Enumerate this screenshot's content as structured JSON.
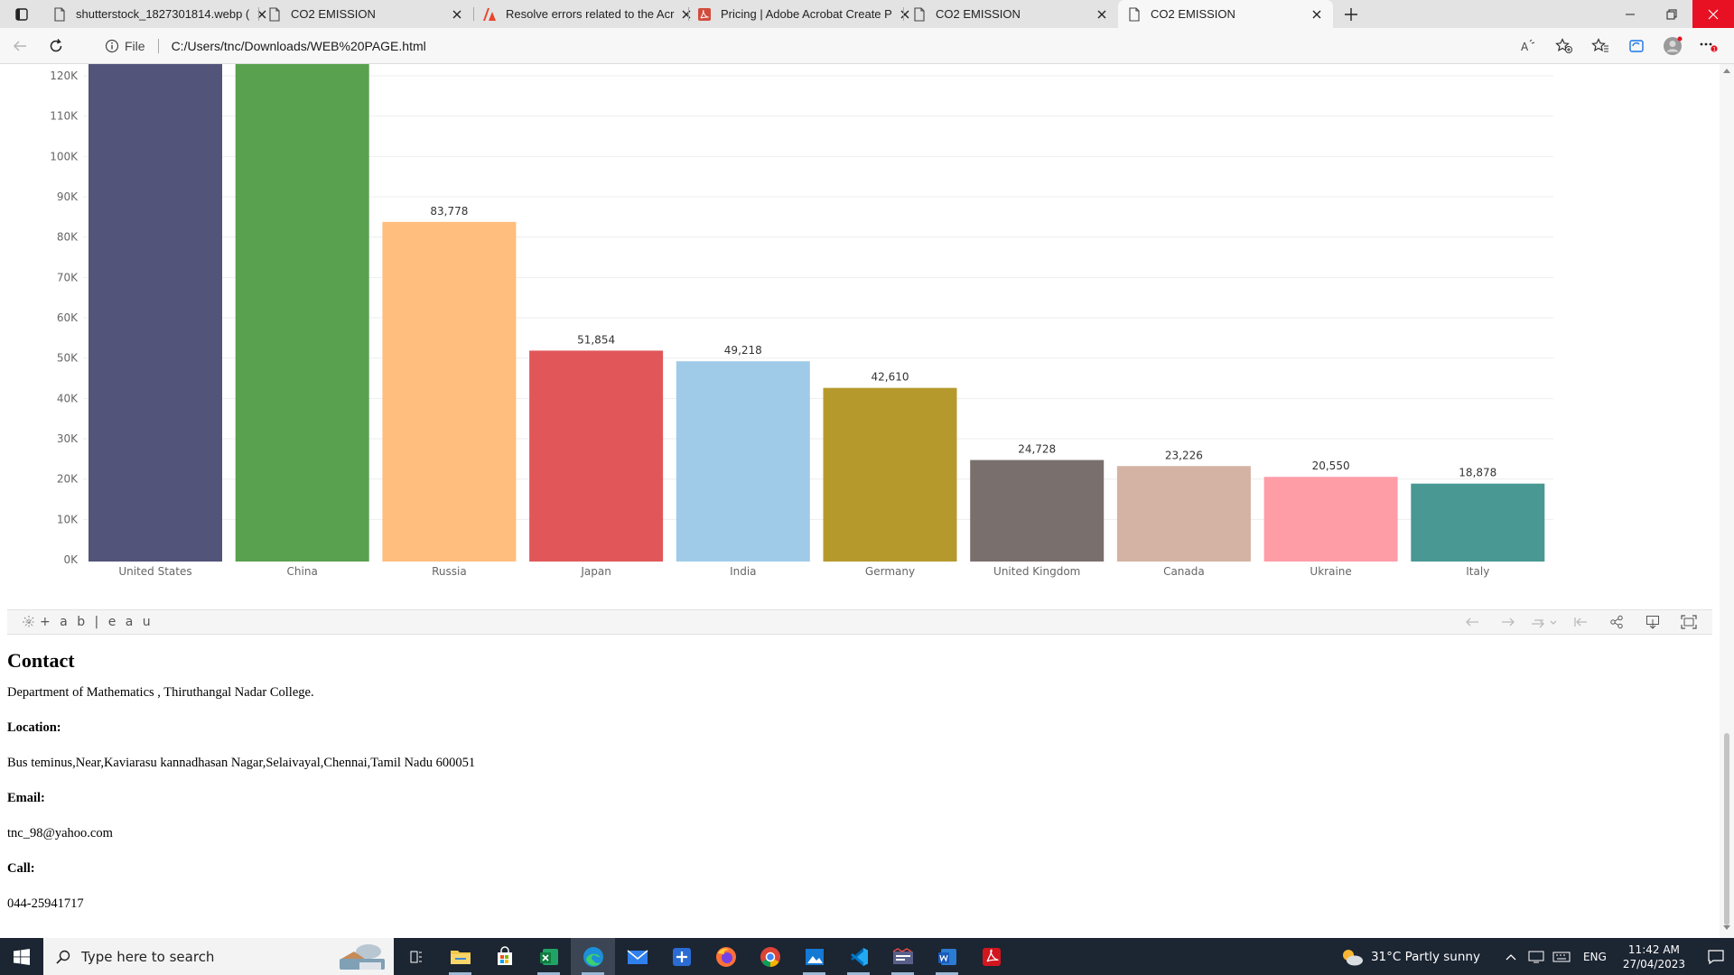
{
  "browser": {
    "tabs": [
      {
        "title": "shutterstock_1827301814.webp (",
        "icon": "page-icon",
        "active": false
      },
      {
        "title": "CO2 EMISSION",
        "icon": "page-icon",
        "active": false
      },
      {
        "title": "Resolve errors related to the Acr",
        "icon": "adobe-icon",
        "active": false
      },
      {
        "title": "Pricing | Adobe Acrobat Create P",
        "icon": "acrobat-icon",
        "active": false
      },
      {
        "title": "CO2 EMISSION",
        "icon": "page-icon",
        "active": false
      },
      {
        "title": "CO2 EMISSION",
        "icon": "page-icon",
        "active": true
      }
    ],
    "address": {
      "scheme_label": "File",
      "url": "C:/Users/tnc/Downloads/WEB%20PAGE.html"
    }
  },
  "chart_data": {
    "type": "bar",
    "categories": [
      "United States",
      "China",
      "Russia",
      "Japan",
      "India",
      "Germany",
      "United Kingdom",
      "Canada",
      "Ukraine",
      "Italy"
    ],
    "values": [
      null,
      null,
      83778,
      51854,
      49218,
      42610,
      24728,
      23226,
      20550,
      18878
    ],
    "value_labels": [
      "",
      "",
      "83,778",
      "51,854",
      "49,218",
      "42,610",
      "24,728",
      "23,226",
      "20,550",
      "18,878"
    ],
    "colors": [
      "#53547a",
      "#59a14f",
      "#ffbe7d",
      "#e15759",
      "#a0cbe8",
      "#b6992d",
      "#79706e",
      "#d4b3a4",
      "#ff9da7",
      "#499894"
    ],
    "y_ticks": [
      0,
      10000,
      20000,
      30000,
      40000,
      50000,
      60000,
      70000,
      80000,
      90000,
      100000,
      110000,
      120000
    ],
    "y_tick_labels": [
      "0K",
      "10K",
      "20K",
      "30K",
      "40K",
      "50K",
      "60K",
      "70K",
      "80K",
      "90K",
      "100K",
      "110K",
      "120K"
    ],
    "ylim": [
      0,
      120000
    ],
    "grid": true,
    "note": "United States and China bars exceed the visible 120K top and are clipped"
  },
  "tableau": {
    "logo_text": "+ a b | e a u"
  },
  "contact": {
    "heading": "Contact",
    "department": "Department of Mathematics , Thiruthangal Nadar College.",
    "location_label": "Location:",
    "location": "Bus teminus,Near,Kaviarasu kannadhasan Nagar,Selaivayal,Chennai,Tamil Nadu 600051",
    "email_label": "Email:",
    "email": "tnc_98@yahoo.com",
    "call_label": "Call:",
    "phone": "044-25941717"
  },
  "taskbar": {
    "search_placeholder": "Type here to search",
    "weather": "31°C  Partly sunny",
    "language": "ENG",
    "time": "11:42 AM",
    "date": "27/04/2023"
  }
}
